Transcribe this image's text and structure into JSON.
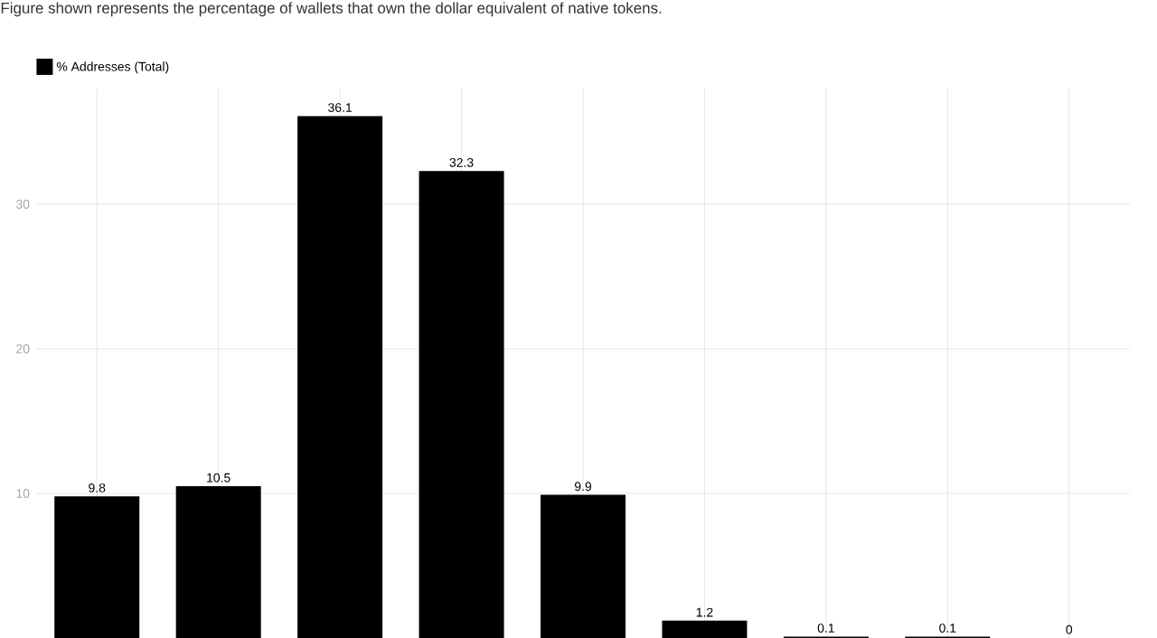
{
  "chart_data": {
    "type": "bar",
    "title": "Figure shown represents the percentage of wallets that own the dollar equivalent of native tokens.",
    "categories": [
      null,
      null,
      null,
      null,
      null,
      null,
      null,
      null,
      null
    ],
    "series": [
      {
        "name": "% Addresses (Total)",
        "color": "#000000",
        "values": [
          9.8,
          10.5,
          36.1,
          32.3,
          9.9,
          1.2,
          0.1,
          0.1,
          0
        ]
      }
    ],
    "ylim": [
      0,
      38
    ],
    "yticks": [
      10,
      20,
      30
    ],
    "grid": true,
    "legend": "top left",
    "data_labels": true,
    "tick_labels": "y"
  }
}
